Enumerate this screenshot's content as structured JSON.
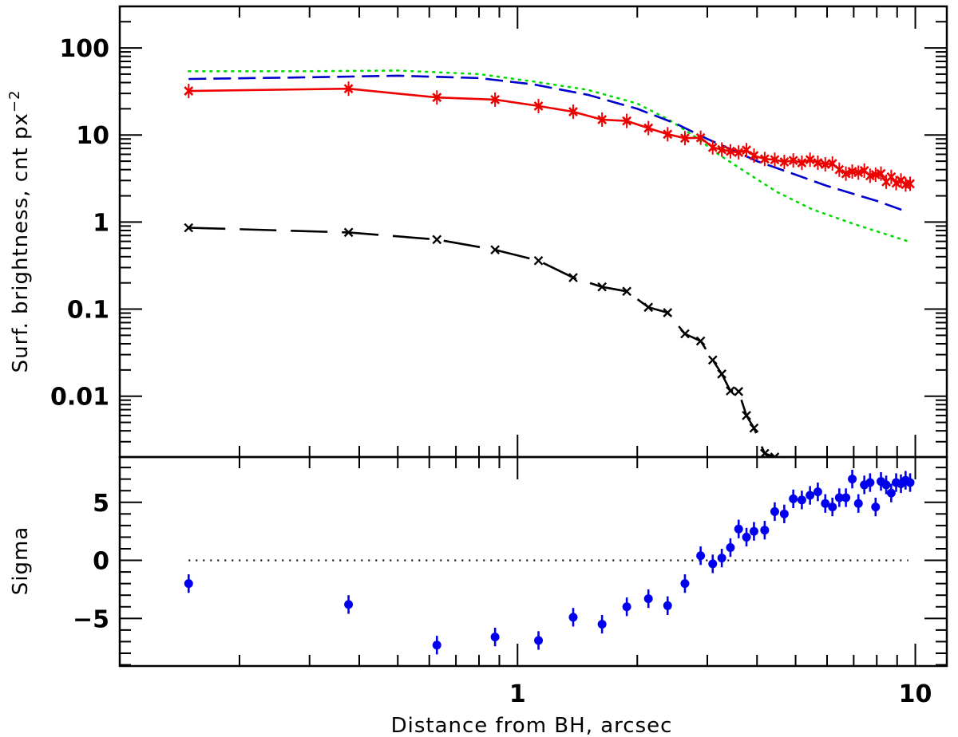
{
  "chart_data": {
    "type": "scatter",
    "xscale": "log",
    "x_ticks": [
      {
        "value": 1,
        "label": "1"
      },
      {
        "value": 10,
        "label": "10"
      }
    ],
    "xlabel": "Distance from BH, arcsec",
    "xlim": [
      0.1,
      12
    ],
    "panels": [
      {
        "name": "surface-brightness",
        "yscale": "log",
        "ylabel": "Surf. brightness, cnt px",
        "ylabel_sup": "−2",
        "ylim": [
          0.002,
          300
        ],
        "y_ticks": [
          {
            "value": 100,
            "label": "100"
          },
          {
            "value": 10,
            "label": "10"
          },
          {
            "value": 1,
            "label": "1"
          },
          {
            "value": 0.1,
            "label": "0.1"
          },
          {
            "value": 0.01,
            "label": "0.01"
          }
        ],
        "series": [
          {
            "style": "dotted",
            "color": "#00dd00",
            "x": [
              0.149,
              0.3,
              0.5,
              0.8,
              1.1,
              1.5,
              2.0,
              2.4,
              2.8,
              3.2,
              3.8,
              4.5,
              5.5,
              7.0,
              9.6
            ],
            "y": [
              54,
              54,
              55,
              50,
              41,
              33,
              23,
              15,
              9.5,
              6.0,
              3.6,
              2.2,
              1.4,
              0.95,
              0.6
            ]
          },
          {
            "style": "dashed",
            "color": "#0000cc",
            "x": [
              0.149,
              0.3,
              0.5,
              0.8,
              1.1,
              1.5,
              2.0,
              2.5,
              3.0,
              3.5,
              4.0,
              5.0,
              6.0,
              8.0,
              9.6
            ],
            "y": [
              44,
              46,
              48,
              45,
              38,
              29,
              20,
              13.5,
              9.0,
              6.6,
              5.0,
              3.5,
              2.6,
              1.75,
              1.3
            ]
          },
          {
            "style": "solid",
            "color": "#ee0000",
            "marker": "x-err",
            "x": [
              0.149,
              0.376,
              0.627,
              0.878,
              1.129,
              1.38,
              1.631,
              1.882,
              2.133,
              2.384,
              2.635,
              2.886,
              3.095,
              3.262,
              3.429,
              3.596,
              3.763,
              3.93,
              4.181,
              4.432,
              4.683,
              4.934,
              5.185,
              5.436,
              5.687,
              5.938,
              6.189,
              6.44,
              6.691,
              6.942,
              7.193,
              7.444,
              7.695,
              7.946,
              8.197,
              8.448,
              8.699,
              8.95,
              9.201,
              9.452,
              9.703
            ],
            "y": [
              32,
              34,
              27,
              25.5,
              21.5,
              18.5,
              15,
              14.5,
              12,
              10.2,
              9.2,
              9.3,
              7.2,
              6.8,
              6.5,
              6.3,
              6.7,
              5.8,
              5.3,
              5.2,
              4.9,
              5.1,
              4.8,
              5.2,
              4.8,
              4.6,
              4.7,
              4.0,
              3.6,
              3.8,
              3.7,
              3.9,
              3.4,
              3.5,
              3.6,
              2.9,
              3.3,
              2.8,
              3.0,
              2.7,
              2.75
            ]
          },
          {
            "style": "long-dash",
            "color": "#000000",
            "marker": "x",
            "x": [
              0.149,
              0.376,
              0.627,
              0.878,
              1.129,
              1.38,
              1.631,
              1.882,
              2.133,
              2.384,
              2.635,
              2.886,
              3.095,
              3.262,
              3.429,
              3.596,
              3.763,
              3.93,
              4.181,
              4.432
            ],
            "y": [
              0.86,
              0.76,
              0.63,
              0.48,
              0.36,
              0.23,
              0.18,
              0.16,
              0.105,
              0.091,
              0.052,
              0.043,
              0.026,
              0.018,
              0.0115,
              0.0113,
              0.006,
              0.0043,
              0.0022,
              0.002
            ]
          }
        ]
      },
      {
        "name": "residuals",
        "yscale": "linear",
        "ylabel": "Sigma",
        "ylim": [
          -9.1,
          8.9
        ],
        "y_ticks": [
          {
            "value": 5,
            "label": "5"
          },
          {
            "value": 0,
            "label": "0"
          },
          {
            "value": -5,
            "label": "−5"
          }
        ],
        "reference_line": {
          "y": 0,
          "style": "dotted",
          "x_from": 0.149,
          "x_to": 9.6
        },
        "series": [
          {
            "color": "#0000ee",
            "marker": "filled-circle",
            "error": 0.8,
            "x": [
              0.149,
              0.376,
              0.627,
              0.878,
              1.129,
              1.38,
              1.631,
              1.882,
              2.133,
              2.384,
              2.635,
              2.886,
              3.095,
              3.262,
              3.429,
              3.596,
              3.763,
              3.93,
              4.181,
              4.432,
              4.683,
              4.934,
              5.185,
              5.436,
              5.687,
              5.938,
              6.189,
              6.44,
              6.691,
              6.942,
              7.193,
              7.444,
              7.695,
              7.946,
              8.197,
              8.448,
              8.699,
              8.95,
              9.201,
              9.452,
              9.703
            ],
            "y": [
              -2.0,
              -3.8,
              -7.3,
              -6.6,
              -6.9,
              -4.9,
              -5.5,
              -4.0,
              -3.3,
              -3.9,
              -2.0,
              0.4,
              -0.3,
              0.2,
              1.1,
              2.7,
              2.0,
              2.5,
              2.6,
              4.2,
              4.0,
              5.3,
              5.2,
              5.6,
              5.9,
              4.9,
              4.6,
              5.4,
              5.4,
              7.0,
              4.9,
              6.5,
              6.7,
              4.6,
              6.8,
              6.5,
              5.8,
              6.7,
              6.6,
              6.9,
              6.7
            ]
          }
        ]
      }
    ]
  }
}
